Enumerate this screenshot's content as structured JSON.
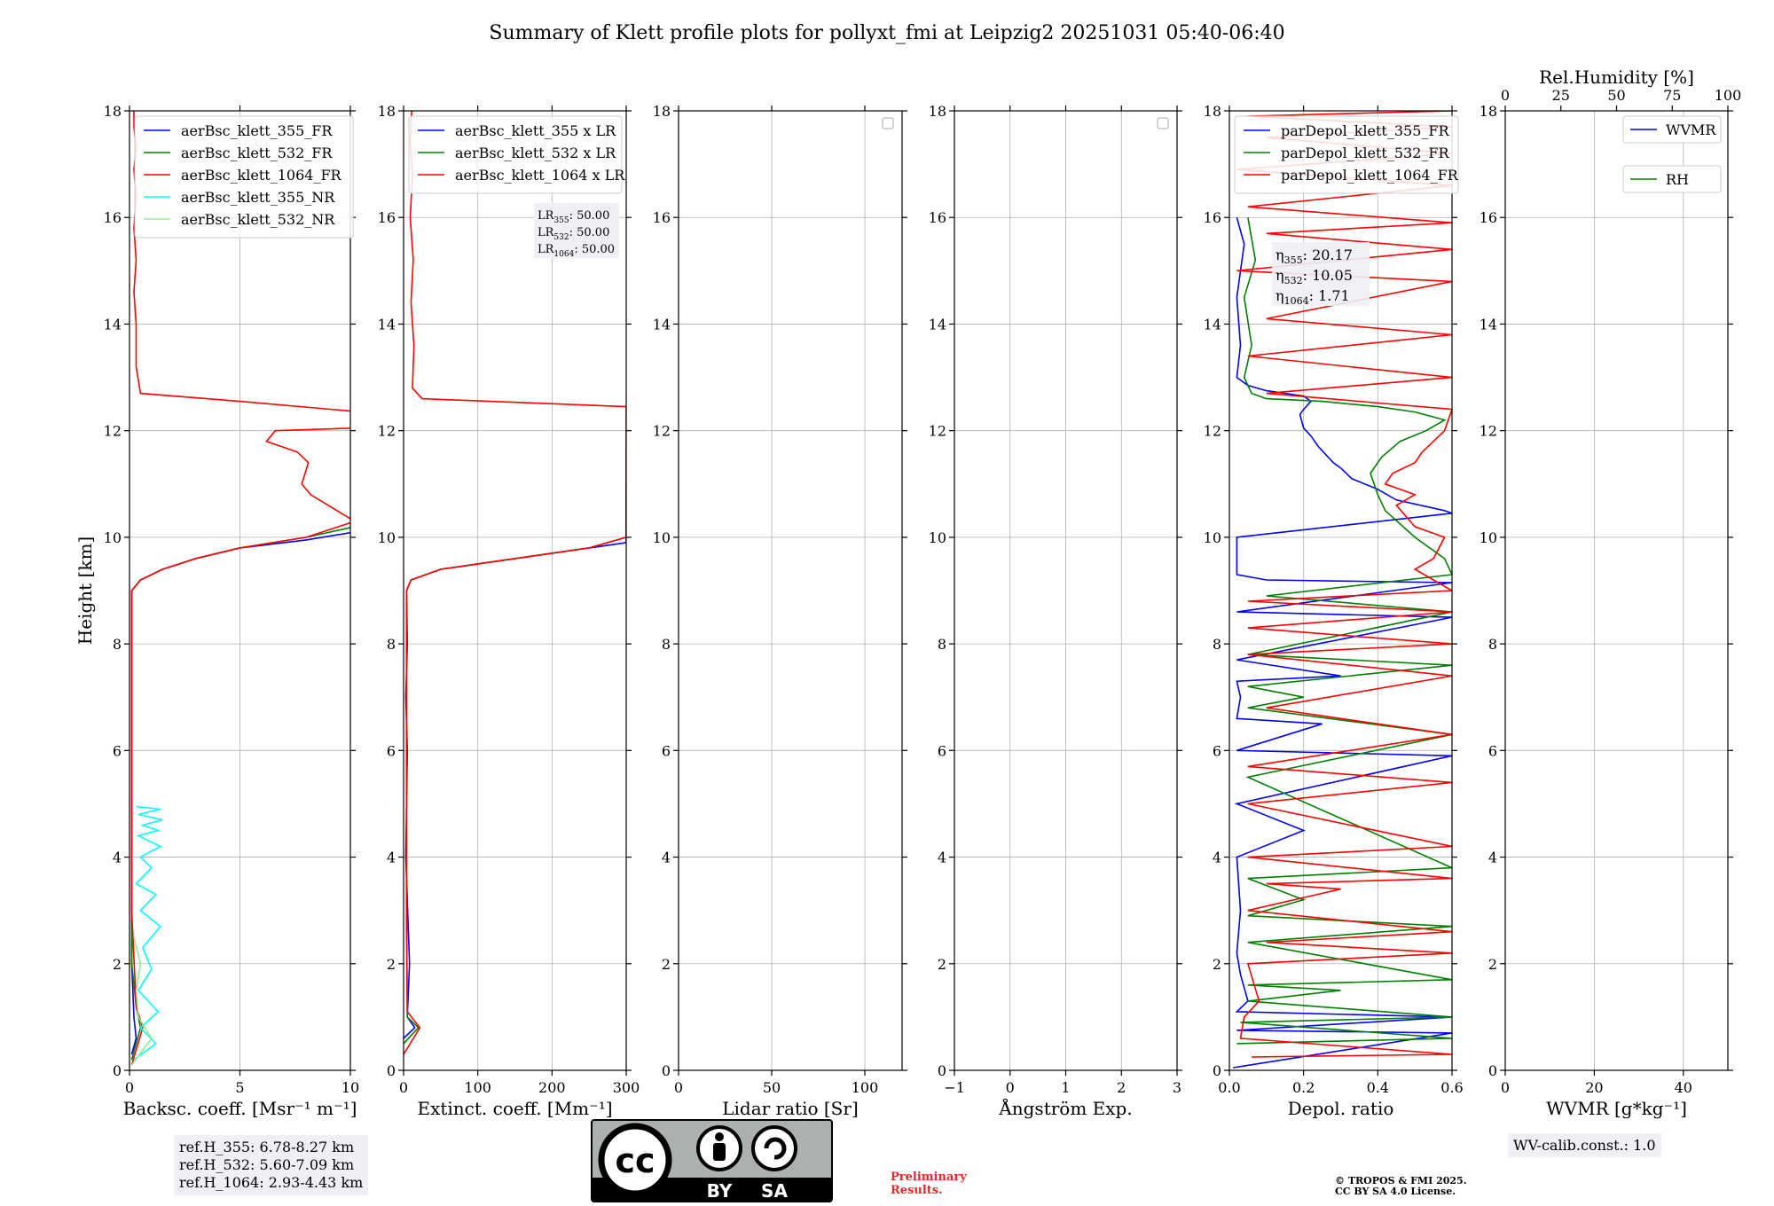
{
  "figure_title": "Summary of Klett profile plots for pollyxt_fmi at Leipzig2 20251031 05:40-06:40",
  "chart_data": [
    {
      "id": "bsc",
      "type": "line",
      "title": "",
      "xlabel": "Backsc. coeff. [Msr⁻¹ m⁻¹]",
      "ylabel": "Height [km]",
      "xlim": [
        0,
        10
      ],
      "ylim": [
        0,
        18
      ],
      "xticks": [
        "0",
        "5",
        "10"
      ],
      "yticks": [
        "0",
        "2",
        "4",
        "6",
        "8",
        "10",
        "12",
        "14",
        "16",
        "18"
      ],
      "grid": true,
      "legend_position": "top-left",
      "series": [
        {
          "name": "aerBsc_klett_355_FR",
          "color": "#0000ff",
          "x": [
            0.1,
            0.3,
            0.2,
            0.1,
            0.1,
            0.1,
            0.1,
            0.1,
            0.5,
            1.5,
            3,
            5,
            8,
            10.2,
            10.5,
            10.5
          ],
          "y": [
            0.3,
            0.6,
            1.0,
            2.0,
            4.0,
            6.0,
            8.0,
            9.0,
            9.2,
            9.4,
            9.6,
            9.8,
            9.95,
            10.1,
            11.05,
            11.06
          ]
        },
        {
          "name": "aerBsc_klett_532_FR",
          "color": "#008000",
          "x": [
            0.1,
            0.5,
            0.3,
            0.1,
            0.1,
            0.1,
            0.1,
            0.5,
            1.5,
            3,
            5,
            8,
            10.2,
            10.5,
            10.5
          ],
          "y": [
            0.2,
            0.8,
            1.2,
            2.0,
            5.0,
            8.0,
            9.0,
            9.2,
            9.4,
            9.6,
            9.8,
            10.0,
            10.2,
            11.8,
            11.81
          ]
        },
        {
          "name": "aerBsc_klett_1064_FR",
          "color": "#ff0000",
          "x": [
            0.1,
            0.6,
            0.3,
            0.1,
            0.1,
            0.1,
            0.1,
            0.5,
            1.5,
            3,
            5,
            8,
            10.2,
            8.2,
            7.8,
            8.1,
            7.6,
            6.2,
            6.6,
            10.2,
            10.5,
            5,
            0.5,
            0.3,
            0.3,
            0.2,
            0.3,
            0.2,
            0.3,
            0.2,
            0.3,
            0.2,
            0.2
          ],
          "y": [
            0.1,
            0.8,
            1.2,
            3.0,
            6.0,
            8.0,
            9.0,
            9.2,
            9.4,
            9.6,
            9.8,
            10.0,
            10.3,
            10.8,
            11.0,
            11.4,
            11.6,
            11.8,
            12.0,
            12.05,
            12.35,
            12.55,
            12.7,
            13.2,
            14.0,
            14.6,
            15.2,
            15.8,
            16.4,
            16.9,
            17.3,
            17.7,
            18.0
          ]
        },
        {
          "name": "aerBsc_klett_355_NR",
          "color": "#00ffff",
          "x": [
            0.2,
            1.2,
            0.5,
            1.3,
            0.4,
            1.0,
            0.6,
            1.4,
            0.5,
            1.2,
            0.3,
            1.0,
            0.5,
            1.4,
            0.4,
            1.3,
            0.6,
            1.5,
            0.4,
            1.4,
            0.3
          ],
          "y": [
            0.2,
            0.5,
            0.8,
            1.1,
            1.5,
            1.9,
            2.3,
            2.7,
            3.0,
            3.3,
            3.5,
            3.8,
            4.0,
            4.2,
            4.4,
            4.5,
            4.6,
            4.7,
            4.8,
            4.9,
            4.95
          ]
        },
        {
          "name": "aerBsc_klett_532_NR",
          "color": "#90ee90",
          "x": [
            0.1,
            1.0,
            0.4,
            0.3,
            0.5,
            0.2
          ],
          "y": [
            0.1,
            0.6,
            1.0,
            1.5,
            2.0,
            2.5
          ]
        }
      ]
    },
    {
      "id": "ext",
      "type": "line",
      "xlabel": "Extinct. coeff. [Mm⁻¹]",
      "xlim": [
        0,
        300
      ],
      "ylim": [
        0,
        18
      ],
      "xticks": [
        "0",
        "100",
        "200",
        "300"
      ],
      "yticks": [
        "0",
        "2",
        "4",
        "6",
        "8",
        "10",
        "12",
        "14",
        "16",
        "18"
      ],
      "grid": true,
      "legend_position": "top-left",
      "annotation": [
        "LR355: 50.00",
        "LR532: 50.00",
        "LR1064: 50.00"
      ],
      "series": [
        {
          "name": "aerBsc_klett_355 x LR",
          "color": "#0000ff",
          "x": [
            0,
            15,
            5,
            8,
            3,
            5,
            3,
            5,
            4,
            10,
            50,
            150,
            250,
            300,
            300
          ],
          "y": [
            0.6,
            0.8,
            1.0,
            2.0,
            4.0,
            6.0,
            7.0,
            8.0,
            9.0,
            9.2,
            9.4,
            9.6,
            9.8,
            9.9,
            11.05
          ]
        },
        {
          "name": "aerBsc_klett_532 x LR",
          "color": "#008000",
          "x": [
            0,
            20,
            5,
            4,
            4,
            4,
            10,
            50,
            150,
            250,
            300,
            300
          ],
          "y": [
            0.5,
            0.8,
            1.0,
            3.0,
            6.0,
            9.0,
            9.2,
            9.4,
            9.6,
            9.8,
            10.0,
            11.8
          ]
        },
        {
          "name": "aerBsc_klett_1064 x LR",
          "color": "#ff0000",
          "x": [
            0,
            22,
            5,
            4,
            4,
            4,
            10,
            50,
            150,
            250,
            300,
            300,
            25,
            12,
            14,
            10,
            13,
            9,
            12,
            9,
            11
          ],
          "y": [
            0.3,
            0.8,
            1.1,
            3.0,
            6.0,
            9.0,
            9.2,
            9.4,
            9.6,
            9.8,
            10.0,
            12.45,
            12.6,
            12.8,
            13.6,
            14.4,
            15.2,
            16.0,
            16.8,
            17.4,
            18.0
          ]
        }
      ]
    },
    {
      "id": "lr",
      "type": "line",
      "xlabel": "Lidar ratio [Sr]",
      "xlim": [
        0,
        120
      ],
      "ylim": [
        0,
        18
      ],
      "xticks": [
        "0",
        "50",
        "100"
      ],
      "yticks": [
        "0",
        "2",
        "4",
        "6",
        "8",
        "10",
        "12",
        "14",
        "16",
        "18"
      ],
      "grid": true,
      "series": []
    },
    {
      "id": "ae",
      "type": "line",
      "xlabel": "Ångström Exp.",
      "xlim": [
        -1,
        3
      ],
      "ylim": [
        0,
        18
      ],
      "xticks": [
        "−1",
        "0",
        "1",
        "2",
        "3"
      ],
      "yticks": [
        "0",
        "2",
        "4",
        "6",
        "8",
        "10",
        "12",
        "14",
        "16",
        "18"
      ],
      "grid": true,
      "series": []
    },
    {
      "id": "depol",
      "type": "line",
      "xlabel": "Depol. ratio",
      "xlim": [
        0,
        0.6
      ],
      "ylim": [
        0,
        18
      ],
      "xticks": [
        "0.0",
        "0.2",
        "0.4",
        "0.6"
      ],
      "yticks": [
        "0",
        "2",
        "4",
        "6",
        "8",
        "10",
        "12",
        "14",
        "16",
        "18"
      ],
      "grid": true,
      "legend_position": "top-left",
      "annotation": [
        "η355: 20.17",
        "η532: 10.05",
        "η1064: 1.71"
      ],
      "series": [
        {
          "name": "parDepol_klett_355_FR",
          "color": "#0000ff",
          "x": [
            0.01,
            0.6,
            0.02,
            0.6,
            0.02,
            0.05,
            0.03,
            0.02,
            0.03,
            0.02,
            0.2,
            0.02,
            0.6,
            0.02,
            0.25,
            0.02,
            0.03,
            0.02,
            0.3,
            0.02,
            0.6,
            0.02,
            0.6,
            0.1,
            0.02,
            0.02,
            0.6,
            0.58,
            0.45,
            0.4,
            0.33,
            0.3,
            0.28,
            0.24,
            0.22,
            0.2,
            0.19,
            0.2,
            0.22,
            0.2,
            0.1,
            0.05,
            0.02,
            0.03,
            0.02,
            0.04,
            0.02
          ],
          "y": [
            0.05,
            0.7,
            0.75,
            1.0,
            1.1,
            1.3,
            1.8,
            2.2,
            3.0,
            4.0,
            4.5,
            5.0,
            5.9,
            6.0,
            6.5,
            6.6,
            7.0,
            7.3,
            7.4,
            7.7,
            8.5,
            8.6,
            9.15,
            9.2,
            9.3,
            10.0,
            10.45,
            10.5,
            10.7,
            10.9,
            11.1,
            11.3,
            11.4,
            11.7,
            11.9,
            12.05,
            12.3,
            12.4,
            12.55,
            12.65,
            12.75,
            12.85,
            13.0,
            13.6,
            14.5,
            15.5,
            16.0
          ]
        },
        {
          "name": "parDepol_klett_532_FR",
          "color": "#008000",
          "x": [
            0.02,
            0.6,
            0.03,
            0.6,
            0.05,
            0.3,
            0.05,
            0.6,
            0.05,
            0.6,
            0.05,
            0.2,
            0.05,
            0.6,
            0.05,
            0.6,
            0.05,
            0.2,
            0.05,
            0.6,
            0.05,
            0.6,
            0.1,
            0.6,
            0.58,
            0.5,
            0.42,
            0.4,
            0.38,
            0.41,
            0.46,
            0.53,
            0.58,
            0.5,
            0.4,
            0.25,
            0.1,
            0.06,
            0.04,
            0.06,
            0.04,
            0.07,
            0.05
          ],
          "y": [
            0.5,
            0.6,
            0.9,
            1.0,
            1.3,
            1.5,
            1.6,
            1.7,
            2.4,
            2.7,
            2.9,
            3.2,
            3.6,
            3.8,
            5.5,
            6.3,
            6.8,
            7.0,
            7.2,
            7.6,
            7.8,
            8.6,
            8.9,
            9.3,
            9.6,
            10.0,
            10.5,
            10.8,
            11.2,
            11.5,
            11.8,
            12.0,
            12.2,
            12.35,
            12.45,
            12.55,
            12.6,
            12.7,
            13.0,
            13.6,
            14.5,
            15.2,
            16.0
          ]
        },
        {
          "name": "parDepol_klett_1064_FR",
          "color": "#ff0000",
          "x": [
            0.06,
            0.6,
            0.03,
            0.04,
            0.08,
            0.05,
            0.6,
            0.1,
            0.6,
            0.05,
            0.3,
            0.1,
            0.6,
            0.05,
            0.6,
            0.05,
            0.6,
            0.05,
            0.6,
            0.1,
            0.6,
            0.05,
            0.6,
            0.05,
            0.6,
            0.05,
            0.6,
            0.55,
            0.5,
            0.55,
            0.58,
            0.5,
            0.45,
            0.5,
            0.42,
            0.44,
            0.5,
            0.52,
            0.55,
            0.58,
            0.6,
            0.1,
            0.6,
            0.05,
            0.6,
            0.1,
            0.6,
            0.02,
            0.6,
            0.1,
            0.6,
            0.05,
            0.6,
            0.02,
            0.6,
            0.1,
            0.6,
            0.05,
            0.6
          ],
          "y": [
            0.25,
            0.3,
            0.6,
            1.0,
            1.3,
            2.0,
            2.2,
            2.4,
            2.6,
            3.0,
            3.4,
            3.5,
            3.6,
            4.0,
            4.2,
            5.0,
            5.4,
            5.7,
            6.3,
            6.8,
            7.4,
            7.8,
            8.0,
            8.3,
            8.6,
            8.8,
            9.0,
            9.2,
            9.4,
            9.6,
            10.0,
            10.2,
            10.6,
            10.8,
            11.0,
            11.2,
            11.4,
            11.6,
            11.8,
            12.0,
            12.4,
            12.7,
            13.0,
            13.4,
            13.8,
            14.1,
            14.8,
            15.0,
            15.4,
            15.7,
            15.9,
            16.2,
            16.6,
            16.9,
            17.2,
            17.5,
            17.7,
            17.9,
            18.0
          ]
        }
      ]
    },
    {
      "id": "wv",
      "type": "line",
      "xlabel": "WVMR [g*kg⁻¹]",
      "top_xlabel": "Rel.Humidity [%]",
      "xlim": [
        0,
        50
      ],
      "ylim": [
        0,
        18
      ],
      "top_xlim": [
        0,
        100
      ],
      "xticks": [
        "0",
        "20",
        "40"
      ],
      "top_xticks": [
        "0",
        "25",
        "50",
        "75",
        "100"
      ],
      "yticks": [
        "0",
        "2",
        "4",
        "6",
        "8",
        "10",
        "12",
        "14",
        "16",
        "18"
      ],
      "grid": true,
      "legend_position": "top-right",
      "series": [
        {
          "name": "WVMR",
          "color": "#0000ff",
          "x": [],
          "y": []
        },
        {
          "name": "RH",
          "color": "#008000",
          "x": [],
          "y": []
        }
      ]
    }
  ],
  "ref_heights": [
    "ref.H_355: 6.78-8.27 km",
    "ref.H_532: 5.60-7.09 km",
    "ref.H_1064: 2.93-4.43 km"
  ],
  "wv_calib": "WV-calib.const.: 1.0",
  "preliminary": [
    "Preliminary",
    "Results."
  ],
  "copyright": [
    "© TROPOS & FMI 2025.",
    "CC BY SA 4.0 License."
  ],
  "license_badge": {
    "cc": "cc",
    "by": "BY",
    "sa": "SA"
  }
}
